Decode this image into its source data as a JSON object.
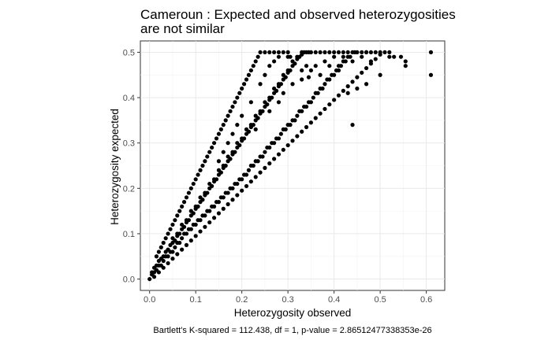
{
  "chart_data": {
    "type": "scatter",
    "title_lines": [
      "Cameroun : Expected and observed heterozygosities",
      "are not similar"
    ],
    "xlabel": "Heterozygosity observed",
    "ylabel": "Heterozygosity expected",
    "caption": "Bartlett's K-squared = 112.438, df = 1, p-value = 2.86512477338353e-26",
    "xlim": [
      -0.02,
      0.64
    ],
    "ylim": [
      -0.025,
      0.525
    ],
    "x_ticks": [
      0.0,
      0.1,
      0.2,
      0.3,
      0.4,
      0.5,
      0.6
    ],
    "x_tick_labels": [
      "0.0",
      "0.1",
      "0.2",
      "0.3",
      "0.4",
      "0.5",
      "0.6"
    ],
    "y_ticks": [
      0.0,
      0.1,
      0.2,
      0.3,
      0.4,
      0.5
    ],
    "y_tick_labels": [
      "0.0",
      "0.1",
      "0.2",
      "0.3",
      "0.4",
      "0.5"
    ],
    "grid": true,
    "point_color": "#000000",
    "points": [
      [
        0.0,
        0.0
      ],
      [
        0.005,
        0.01
      ],
      [
        0.01,
        0.015
      ],
      [
        0.015,
        0.02
      ],
      [
        0.02,
        0.03
      ],
      [
        0.025,
        0.03
      ],
      [
        0.03,
        0.04
      ],
      [
        0.035,
        0.05
      ],
      [
        0.04,
        0.05
      ],
      [
        0.045,
        0.06
      ],
      [
        0.05,
        0.06
      ],
      [
        0.055,
        0.07
      ],
      [
        0.06,
        0.08
      ],
      [
        0.065,
        0.08
      ],
      [
        0.07,
        0.09
      ],
      [
        0.075,
        0.1
      ],
      [
        0.08,
        0.1
      ],
      [
        0.085,
        0.11
      ],
      [
        0.09,
        0.11
      ],
      [
        0.095,
        0.12
      ],
      [
        0.1,
        0.12
      ],
      [
        0.105,
        0.13
      ],
      [
        0.11,
        0.13
      ],
      [
        0.115,
        0.14
      ],
      [
        0.12,
        0.14
      ],
      [
        0.125,
        0.15
      ],
      [
        0.13,
        0.15
      ],
      [
        0.135,
        0.16
      ],
      [
        0.14,
        0.16
      ],
      [
        0.145,
        0.17
      ],
      [
        0.15,
        0.17
      ],
      [
        0.155,
        0.18
      ],
      [
        0.16,
        0.18
      ],
      [
        0.165,
        0.19
      ],
      [
        0.17,
        0.19
      ],
      [
        0.175,
        0.2
      ],
      [
        0.18,
        0.2
      ],
      [
        0.185,
        0.21
      ],
      [
        0.19,
        0.21
      ],
      [
        0.195,
        0.22
      ],
      [
        0.2,
        0.22
      ],
      [
        0.205,
        0.23
      ],
      [
        0.21,
        0.23
      ],
      [
        0.215,
        0.24
      ],
      [
        0.22,
        0.25
      ],
      [
        0.225,
        0.25
      ],
      [
        0.23,
        0.26
      ],
      [
        0.235,
        0.26
      ],
      [
        0.24,
        0.27
      ],
      [
        0.245,
        0.27
      ],
      [
        0.25,
        0.28
      ],
      [
        0.255,
        0.29
      ],
      [
        0.26,
        0.29
      ],
      [
        0.265,
        0.3
      ],
      [
        0.27,
        0.3
      ],
      [
        0.275,
        0.31
      ],
      [
        0.28,
        0.31
      ],
      [
        0.285,
        0.32
      ],
      [
        0.29,
        0.33
      ],
      [
        0.295,
        0.33
      ],
      [
        0.3,
        0.34
      ],
      [
        0.305,
        0.34
      ],
      [
        0.31,
        0.35
      ],
      [
        0.315,
        0.35
      ],
      [
        0.32,
        0.36
      ],
      [
        0.325,
        0.37
      ],
      [
        0.33,
        0.37
      ],
      [
        0.335,
        0.38
      ],
      [
        0.34,
        0.38
      ],
      [
        0.345,
        0.39
      ],
      [
        0.35,
        0.39
      ],
      [
        0.355,
        0.4
      ],
      [
        0.36,
        0.41
      ],
      [
        0.365,
        0.41
      ],
      [
        0.37,
        0.42
      ],
      [
        0.375,
        0.42
      ],
      [
        0.38,
        0.43
      ],
      [
        0.385,
        0.44
      ],
      [
        0.39,
        0.44
      ],
      [
        0.395,
        0.45
      ],
      [
        0.4,
        0.45
      ],
      [
        0.405,
        0.46
      ],
      [
        0.41,
        0.46
      ],
      [
        0.415,
        0.47
      ],
      [
        0.42,
        0.48
      ],
      [
        0.425,
        0.48
      ],
      [
        0.43,
        0.49
      ],
      [
        0.435,
        0.49
      ],
      [
        0.44,
        0.5
      ],
      [
        0.445,
        0.5
      ],
      [
        0.45,
        0.5
      ],
      [
        0.46,
        0.5
      ],
      [
        0.47,
        0.5
      ],
      [
        0.48,
        0.5
      ],
      [
        0.49,
        0.5
      ],
      [
        0.5,
        0.5
      ],
      [
        0.51,
        0.5
      ],
      [
        0.52,
        0.5
      ],
      [
        0.53,
        0.49
      ],
      [
        0.545,
        0.49
      ],
      [
        0.61,
        0.5
      ],
      [
        0.61,
        0.45
      ],
      [
        0.555,
        0.48
      ],
      [
        0.555,
        0.47
      ],
      [
        0.005,
        0.015
      ],
      [
        0.01,
        0.025
      ],
      [
        0.015,
        0.03
      ],
      [
        0.02,
        0.04
      ],
      [
        0.025,
        0.045
      ],
      [
        0.03,
        0.05
      ],
      [
        0.035,
        0.06
      ],
      [
        0.04,
        0.065
      ],
      [
        0.045,
        0.075
      ],
      [
        0.05,
        0.08
      ],
      [
        0.055,
        0.085
      ],
      [
        0.06,
        0.095
      ],
      [
        0.065,
        0.1
      ],
      [
        0.07,
        0.11
      ],
      [
        0.075,
        0.115
      ],
      [
        0.08,
        0.125
      ],
      [
        0.085,
        0.13
      ],
      [
        0.09,
        0.14
      ],
      [
        0.095,
        0.145
      ],
      [
        0.1,
        0.155
      ],
      [
        0.105,
        0.16
      ],
      [
        0.11,
        0.17
      ],
      [
        0.115,
        0.175
      ],
      [
        0.12,
        0.185
      ],
      [
        0.125,
        0.19
      ],
      [
        0.13,
        0.2
      ],
      [
        0.135,
        0.205
      ],
      [
        0.14,
        0.215
      ],
      [
        0.145,
        0.22
      ],
      [
        0.15,
        0.23
      ],
      [
        0.155,
        0.235
      ],
      [
        0.16,
        0.245
      ],
      [
        0.165,
        0.25
      ],
      [
        0.17,
        0.26
      ],
      [
        0.175,
        0.265
      ],
      [
        0.18,
        0.275
      ],
      [
        0.185,
        0.28
      ],
      [
        0.19,
        0.29
      ],
      [
        0.195,
        0.295
      ],
      [
        0.2,
        0.305
      ],
      [
        0.205,
        0.31
      ],
      [
        0.21,
        0.32
      ],
      [
        0.215,
        0.325
      ],
      [
        0.22,
        0.335
      ],
      [
        0.225,
        0.34
      ],
      [
        0.23,
        0.35
      ],
      [
        0.235,
        0.355
      ],
      [
        0.24,
        0.365
      ],
      [
        0.245,
        0.37
      ],
      [
        0.25,
        0.38
      ],
      [
        0.255,
        0.385
      ],
      [
        0.26,
        0.395
      ],
      [
        0.265,
        0.4
      ],
      [
        0.27,
        0.41
      ],
      [
        0.275,
        0.415
      ],
      [
        0.28,
        0.425
      ],
      [
        0.285,
        0.43
      ],
      [
        0.29,
        0.44
      ],
      [
        0.295,
        0.445
      ],
      [
        0.3,
        0.455
      ],
      [
        0.305,
        0.46
      ],
      [
        0.31,
        0.47
      ],
      [
        0.315,
        0.475
      ],
      [
        0.32,
        0.485
      ],
      [
        0.325,
        0.49
      ],
      [
        0.33,
        0.495
      ],
      [
        0.335,
        0.5
      ],
      [
        0.34,
        0.5
      ],
      [
        0.345,
        0.5
      ],
      [
        0.35,
        0.5
      ],
      [
        0.36,
        0.5
      ],
      [
        0.37,
        0.5
      ],
      [
        0.38,
        0.5
      ],
      [
        0.39,
        0.5
      ],
      [
        0.4,
        0.5
      ],
      [
        0.41,
        0.5
      ],
      [
        0.42,
        0.5
      ],
      [
        0.43,
        0.5
      ],
      [
        0.305,
        0.49
      ],
      [
        0.33,
        0.46
      ],
      [
        0.34,
        0.47
      ],
      [
        0.345,
        0.445
      ],
      [
        0.3,
        0.49
      ],
      [
        0.015,
        0.05
      ],
      [
        0.02,
        0.06
      ],
      [
        0.025,
        0.07
      ],
      [
        0.03,
        0.08
      ],
      [
        0.035,
        0.09
      ],
      [
        0.04,
        0.1
      ],
      [
        0.045,
        0.11
      ],
      [
        0.05,
        0.12
      ],
      [
        0.055,
        0.13
      ],
      [
        0.06,
        0.14
      ],
      [
        0.065,
        0.15
      ],
      [
        0.07,
        0.16
      ],
      [
        0.075,
        0.17
      ],
      [
        0.08,
        0.18
      ],
      [
        0.085,
        0.19
      ],
      [
        0.09,
        0.2
      ],
      [
        0.095,
        0.21
      ],
      [
        0.1,
        0.22
      ],
      [
        0.105,
        0.23
      ],
      [
        0.11,
        0.24
      ],
      [
        0.115,
        0.25
      ],
      [
        0.12,
        0.26
      ],
      [
        0.125,
        0.27
      ],
      [
        0.13,
        0.28
      ],
      [
        0.135,
        0.29
      ],
      [
        0.14,
        0.3
      ],
      [
        0.145,
        0.31
      ],
      [
        0.15,
        0.32
      ],
      [
        0.155,
        0.33
      ],
      [
        0.16,
        0.34
      ],
      [
        0.165,
        0.35
      ],
      [
        0.17,
        0.36
      ],
      [
        0.175,
        0.37
      ],
      [
        0.18,
        0.38
      ],
      [
        0.185,
        0.39
      ],
      [
        0.19,
        0.4
      ],
      [
        0.195,
        0.41
      ],
      [
        0.2,
        0.42
      ],
      [
        0.205,
        0.43
      ],
      [
        0.21,
        0.44
      ],
      [
        0.215,
        0.45
      ],
      [
        0.22,
        0.46
      ],
      [
        0.225,
        0.47
      ],
      [
        0.23,
        0.48
      ],
      [
        0.235,
        0.49
      ],
      [
        0.24,
        0.5
      ],
      [
        0.25,
        0.5
      ],
      [
        0.26,
        0.5
      ],
      [
        0.27,
        0.5
      ],
      [
        0.28,
        0.5
      ],
      [
        0.29,
        0.5
      ],
      [
        0.3,
        0.5
      ],
      [
        0.2,
        0.36
      ],
      [
        0.22,
        0.39
      ],
      [
        0.24,
        0.43
      ],
      [
        0.25,
        0.45
      ],
      [
        0.26,
        0.47
      ],
      [
        0.27,
        0.48
      ],
      [
        0.28,
        0.49
      ],
      [
        0.19,
        0.34
      ],
      [
        0.18,
        0.32
      ],
      [
        0.17,
        0.3
      ],
      [
        0.16,
        0.28
      ],
      [
        0.15,
        0.26
      ],
      [
        0.01,
        0.005
      ],
      [
        0.02,
        0.015
      ],
      [
        0.03,
        0.025
      ],
      [
        0.04,
        0.035
      ],
      [
        0.05,
        0.045
      ],
      [
        0.06,
        0.055
      ],
      [
        0.07,
        0.065
      ],
      [
        0.08,
        0.075
      ],
      [
        0.09,
        0.085
      ],
      [
        0.1,
        0.095
      ],
      [
        0.11,
        0.105
      ],
      [
        0.12,
        0.115
      ],
      [
        0.13,
        0.125
      ],
      [
        0.14,
        0.135
      ],
      [
        0.15,
        0.145
      ],
      [
        0.16,
        0.155
      ],
      [
        0.17,
        0.165
      ],
      [
        0.18,
        0.175
      ],
      [
        0.19,
        0.185
      ],
      [
        0.2,
        0.195
      ],
      [
        0.21,
        0.205
      ],
      [
        0.22,
        0.215
      ],
      [
        0.23,
        0.225
      ],
      [
        0.24,
        0.235
      ],
      [
        0.25,
        0.245
      ],
      [
        0.26,
        0.255
      ],
      [
        0.27,
        0.265
      ],
      [
        0.28,
        0.275
      ],
      [
        0.29,
        0.285
      ],
      [
        0.3,
        0.295
      ],
      [
        0.31,
        0.305
      ],
      [
        0.32,
        0.315
      ],
      [
        0.33,
        0.325
      ],
      [
        0.34,
        0.335
      ],
      [
        0.35,
        0.345
      ],
      [
        0.36,
        0.355
      ],
      [
        0.37,
        0.365
      ],
      [
        0.38,
        0.375
      ],
      [
        0.39,
        0.385
      ],
      [
        0.4,
        0.395
      ],
      [
        0.41,
        0.405
      ],
      [
        0.42,
        0.415
      ],
      [
        0.43,
        0.425
      ],
      [
        0.44,
        0.435
      ],
      [
        0.45,
        0.445
      ],
      [
        0.46,
        0.455
      ],
      [
        0.47,
        0.465
      ],
      [
        0.48,
        0.475
      ],
      [
        0.49,
        0.485
      ],
      [
        0.5,
        0.495
      ],
      [
        0.44,
        0.34
      ],
      [
        0.5,
        0.45
      ],
      [
        0.47,
        0.43
      ],
      [
        0.43,
        0.41
      ],
      [
        0.45,
        0.42
      ],
      [
        0.52,
        0.49
      ],
      [
        0.05,
        0.09
      ],
      [
        0.06,
        0.1
      ],
      [
        0.07,
        0.12
      ],
      [
        0.08,
        0.13
      ],
      [
        0.09,
        0.15
      ],
      [
        0.1,
        0.16
      ],
      [
        0.11,
        0.18
      ],
      [
        0.12,
        0.19
      ],
      [
        0.13,
        0.21
      ],
      [
        0.14,
        0.22
      ],
      [
        0.15,
        0.24
      ],
      [
        0.16,
        0.25
      ],
      [
        0.17,
        0.27
      ],
      [
        0.18,
        0.28
      ],
      [
        0.19,
        0.3
      ],
      [
        0.2,
        0.31
      ],
      [
        0.21,
        0.33
      ],
      [
        0.22,
        0.34
      ],
      [
        0.23,
        0.36
      ],
      [
        0.24,
        0.37
      ],
      [
        0.25,
        0.39
      ],
      [
        0.26,
        0.4
      ],
      [
        0.27,
        0.42
      ],
      [
        0.28,
        0.43
      ],
      [
        0.29,
        0.45
      ],
      [
        0.3,
        0.46
      ],
      [
        0.31,
        0.48
      ],
      [
        0.32,
        0.49
      ],
      [
        0.33,
        0.5
      ],
      [
        0.23,
        0.33
      ],
      [
        0.26,
        0.37
      ],
      [
        0.28,
        0.39
      ],
      [
        0.29,
        0.41
      ],
      [
        0.31,
        0.43
      ],
      [
        0.33,
        0.44
      ],
      [
        0.35,
        0.46
      ],
      [
        0.36,
        0.47
      ],
      [
        0.38,
        0.48
      ],
      [
        0.4,
        0.49
      ],
      [
        0.41,
        0.47
      ],
      [
        0.37,
        0.45
      ],
      [
        0.39,
        0.47
      ],
      [
        0.42,
        0.49
      ],
      [
        0.44,
        0.48
      ],
      [
        0.46,
        0.49
      ],
      [
        0.48,
        0.48
      ],
      [
        0.47,
        0.5
      ]
    ]
  }
}
